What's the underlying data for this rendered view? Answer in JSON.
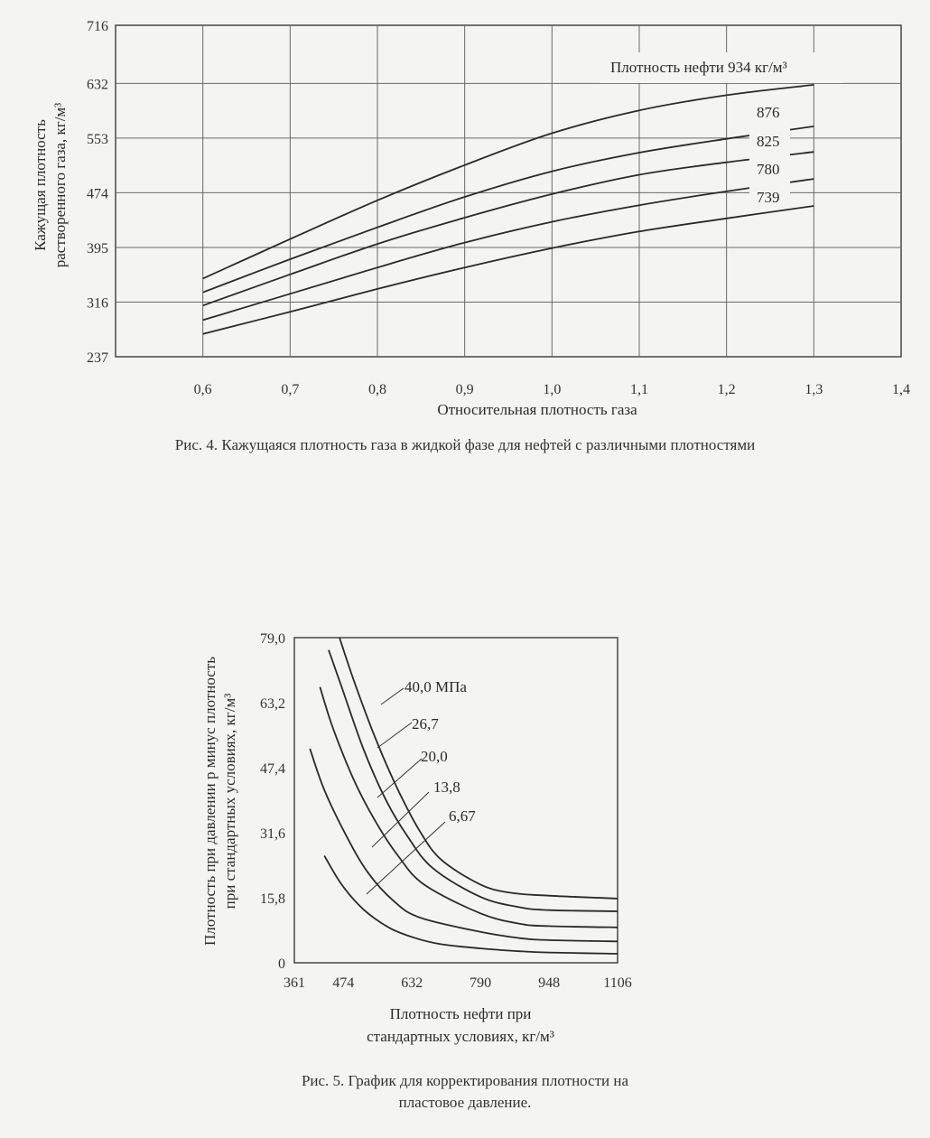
{
  "chart_data": [
    {
      "type": "line",
      "title": "Рис. 4. Кажущаяся плотность газа в жидкой фазе для нефтей с различными плотностями",
      "xlabel": "Относительная плотность газа",
      "ylabel_line1": "Кажущая плотность",
      "ylabel_line2": "растворенного газа, кг/м³",
      "xlim": [
        0.5,
        1.4
      ],
      "ylim": [
        237,
        716
      ],
      "x_ticks": [
        "0,6",
        "0,7",
        "0,8",
        "0,9",
        "1,0",
        "1,1",
        "1,2",
        "1,3",
        "1,4"
      ],
      "y_ticks": [
        "716",
        "632",
        "553",
        "474",
        "395",
        "316",
        "237"
      ],
      "x": [
        0.6,
        0.7,
        0.8,
        0.9,
        1.0,
        1.1,
        1.2,
        1.3
      ],
      "series": [
        {
          "name": "Плотность нефти 934 кг/м³",
          "values": [
            350,
            407,
            463,
            514,
            560,
            593,
            615,
            630
          ]
        },
        {
          "name": "876",
          "values": [
            330,
            378,
            424,
            468,
            505,
            532,
            552,
            570
          ]
        },
        {
          "name": "825",
          "values": [
            311,
            356,
            400,
            438,
            472,
            500,
            518,
            533
          ]
        },
        {
          "name": "780",
          "values": [
            290,
            328,
            366,
            402,
            432,
            456,
            476,
            494
          ]
        },
        {
          "name": "739",
          "values": [
            270,
            302,
            335,
            366,
            394,
            418,
            437,
            455
          ]
        }
      ]
    },
    {
      "type": "line",
      "title_line1": "Рис. 5. График для корректирования плотности на",
      "title_line2": "пластовое давление.",
      "xlabel_line1": "Плотность нефти при",
      "xlabel_line2": "стандартных условиях, кг/м³",
      "ylabel_line1": "Плотность при давлении p минус плотность",
      "ylabel_line2": "при стандартных условиях, кг/м³",
      "xlim": [
        361,
        1106
      ],
      "ylim": [
        0,
        79.0
      ],
      "x_ticks": [
        "361",
        "474",
        "632",
        "790",
        "948",
        "1106"
      ],
      "y_ticks": [
        "79,0",
        "63,2",
        "47,4",
        "31,6",
        "15,8",
        "0"
      ],
      "series": [
        {
          "name": "40,0 МПа",
          "x": [
            465,
            500,
            550,
            600,
            650,
            700,
            790,
            860,
            948,
            1106
          ],
          "values": [
            79.0,
            68,
            54,
            42,
            32,
            25,
            19,
            17,
            16.3,
            15.6
          ]
        },
        {
          "name": "26,7",
          "x": [
            440,
            470,
            520,
            570,
            620,
            680,
            790,
            880,
            948,
            1106
          ],
          "values": [
            76,
            67,
            52,
            40,
            31,
            23,
            16,
            13.5,
            12.8,
            12.5
          ]
        },
        {
          "name": "20,0",
          "x": [
            420,
            450,
            500,
            550,
            600,
            660,
            790,
            880,
            948,
            1106
          ],
          "values": [
            67,
            57,
            44,
            34,
            26,
            19,
            12,
            9.5,
            8.9,
            8.6
          ]
        },
        {
          "name": "13,8",
          "x": [
            397,
            430,
            480,
            530,
            590,
            650,
            790,
            880,
            948,
            1106
          ],
          "values": [
            52,
            42,
            31,
            22,
            15,
            11,
            7.5,
            6,
            5.5,
            5.2
          ]
        },
        {
          "name": "6,67",
          "x": [
            430,
            470,
            520,
            580,
            640,
            700,
            790,
            880,
            948,
            1106
          ],
          "values": [
            26,
            19,
            13,
            8.5,
            6,
            4.5,
            3.5,
            2.8,
            2.5,
            2.2
          ]
        }
      ]
    }
  ]
}
